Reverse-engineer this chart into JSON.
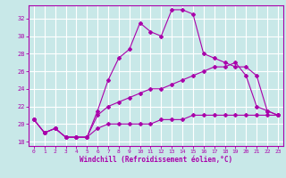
{
  "xlabel": "Windchill (Refroidissement éolien,°C)",
  "bg_color": "#c8e8e8",
  "grid_color": "#ffffff",
  "line_color": "#aa00aa",
  "x_ticks": [
    0,
    1,
    2,
    3,
    4,
    5,
    6,
    7,
    8,
    9,
    10,
    11,
    12,
    13,
    14,
    15,
    16,
    17,
    18,
    19,
    20,
    21,
    22,
    23
  ],
  "y_ticks": [
    18,
    20,
    22,
    24,
    26,
    28,
    30,
    32
  ],
  "ylim": [
    17.5,
    33.5
  ],
  "xlim": [
    -0.5,
    23.5
  ],
  "series": [
    {
      "x": [
        0,
        1,
        2,
        3,
        4,
        5,
        6,
        7,
        8,
        9,
        10,
        11,
        12,
        13,
        14,
        15,
        16,
        17,
        18,
        19,
        20,
        21,
        22,
        23
      ],
      "y": [
        20.5,
        19.0,
        19.5,
        18.5,
        18.5,
        18.5,
        21.5,
        25.0,
        27.5,
        28.5,
        31.5,
        30.5,
        30.0,
        33.0,
        33.0,
        32.5,
        28.0,
        27.5,
        27.0,
        26.5,
        26.5,
        25.5,
        21.5,
        21.0
      ]
    },
    {
      "x": [
        0,
        1,
        2,
        3,
        4,
        5,
        6,
        7,
        8,
        9,
        10,
        11,
        12,
        13,
        14,
        15,
        16,
        17,
        18,
        19,
        20,
        21,
        22,
        23
      ],
      "y": [
        20.5,
        19.0,
        19.5,
        18.5,
        18.5,
        18.5,
        21.0,
        22.0,
        22.5,
        23.0,
        23.5,
        24.0,
        24.0,
        24.5,
        25.0,
        25.5,
        26.0,
        26.5,
        26.5,
        27.0,
        25.5,
        22.0,
        21.5,
        21.0
      ]
    },
    {
      "x": [
        0,
        1,
        2,
        3,
        4,
        5,
        6,
        7,
        8,
        9,
        10,
        11,
        12,
        13,
        14,
        15,
        16,
        17,
        18,
        19,
        20,
        21,
        22,
        23
      ],
      "y": [
        20.5,
        19.0,
        19.5,
        18.5,
        18.5,
        18.5,
        19.5,
        20.0,
        20.0,
        20.0,
        20.0,
        20.0,
        20.5,
        20.5,
        20.5,
        21.0,
        21.0,
        21.0,
        21.0,
        21.0,
        21.0,
        21.0,
        21.0,
        21.0
      ]
    }
  ]
}
